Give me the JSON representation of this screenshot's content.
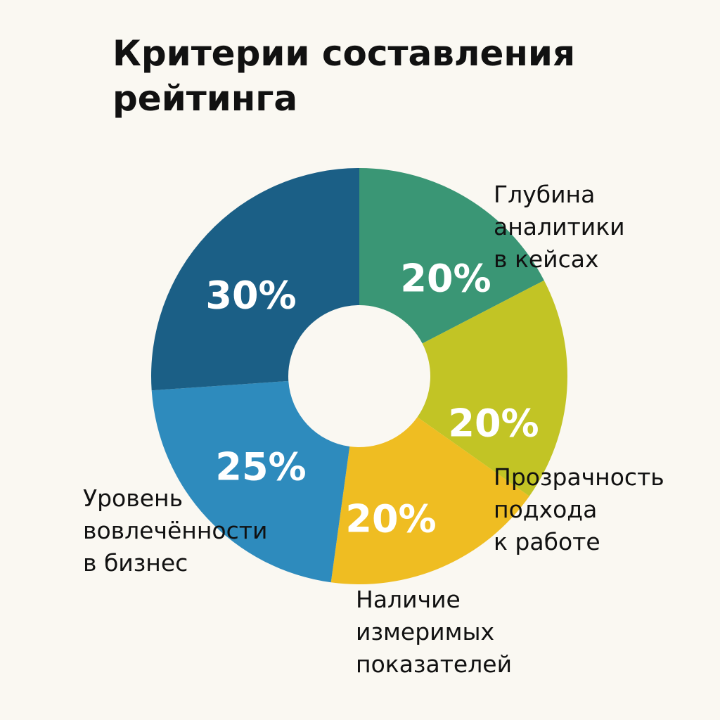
{
  "chart_data": {
    "type": "pie",
    "variant": "donut",
    "title": "Критерии составления\nрейтинга",
    "categories": [
      "Глубина\nаналитики\nв кейсах",
      "Прозрачность\nподхода\nк работе",
      "Наличие\nизмеримых\nпоказателей",
      "Уровень\nвовлечённости\nв бизнес",
      ""
    ],
    "values": [
      20,
      20,
      20,
      25,
      30
    ],
    "labels": [
      "20%",
      "20%",
      "20%",
      "25%",
      "30%"
    ],
    "colors": [
      "#3a9675",
      "#c2c425",
      "#efbd22",
      "#2e8bbd",
      "#1b5f86"
    ],
    "legend": "none"
  }
}
